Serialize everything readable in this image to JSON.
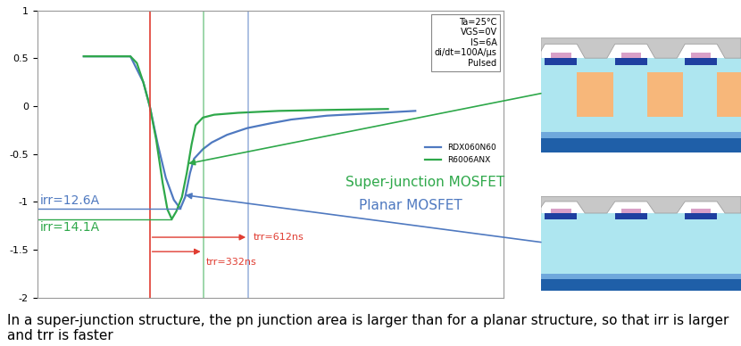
{
  "chart_data": {
    "type": "line",
    "xlim": [
      -700,
      2200
    ],
    "ylim": [
      -2,
      1
    ],
    "yticks": [
      1,
      0.5,
      0,
      -0.5,
      -1,
      -1.5,
      -2
    ],
    "tick_labels": "y",
    "legend": "center right",
    "recovery_start_x": 0,
    "series": [
      {
        "name": "RDX060N60",
        "color": "#4f79c0",
        "x": [
          -410,
          -120,
          -40,
          0,
          50,
          100,
          150,
          190,
          220,
          250,
          275,
          330,
          385,
          480,
          605,
          750,
          880,
          1100,
          1320,
          1650
        ],
        "values": [
          0.52,
          0.52,
          0.25,
          0.0,
          -0.4,
          -0.75,
          -0.98,
          -1.07,
          -0.95,
          -0.7,
          -0.55,
          -0.45,
          -0.38,
          -0.3,
          -0.23,
          -0.18,
          -0.14,
          -0.1,
          -0.08,
          -0.05
        ],
        "peak": {
          "label": "irr=12.6A",
          "x": 190,
          "y": -1.07
        },
        "trr": {
          "label": "trr=612ns",
          "value": 612
        }
      },
      {
        "name": "R6006ANX",
        "color": "#2ea84a",
        "x": [
          -410,
          -300,
          -200,
          -120,
          -80,
          -40,
          0,
          40,
          80,
          110,
          137,
          165,
          200,
          230,
          260,
          285,
          330,
          400,
          550,
          800,
          1100,
          1480
        ],
        "values": [
          0.52,
          0.52,
          0.52,
          0.52,
          0.45,
          0.25,
          0.0,
          -0.35,
          -0.8,
          -1.08,
          -1.18,
          -1.1,
          -0.95,
          -0.7,
          -0.4,
          -0.2,
          -0.12,
          -0.09,
          -0.07,
          -0.05,
          -0.04,
          -0.03
        ],
        "peak": {
          "label": "irr=14.1A",
          "x": 137,
          "y": -1.18
        },
        "trr": {
          "label": "trr=332ns",
          "value": 332
        }
      }
    ],
    "annotations": [
      {
        "text": "Super-junction MOSFET",
        "series": "R6006ANX",
        "x": 240,
        "y": -0.6
      },
      {
        "text": "Planar MOSFET",
        "series": "RDX060N60",
        "x": 220,
        "y": -0.93
      }
    ],
    "conditions": [
      "Ta=25°C",
      "VGS=0V",
      "IS=6A",
      "di/dt=100A/µs",
      "Pulsed"
    ],
    "caption": "In a super-junction structure, the pn junction area is larger than for a planar structure, so that irr is larger and trr is faster"
  }
}
